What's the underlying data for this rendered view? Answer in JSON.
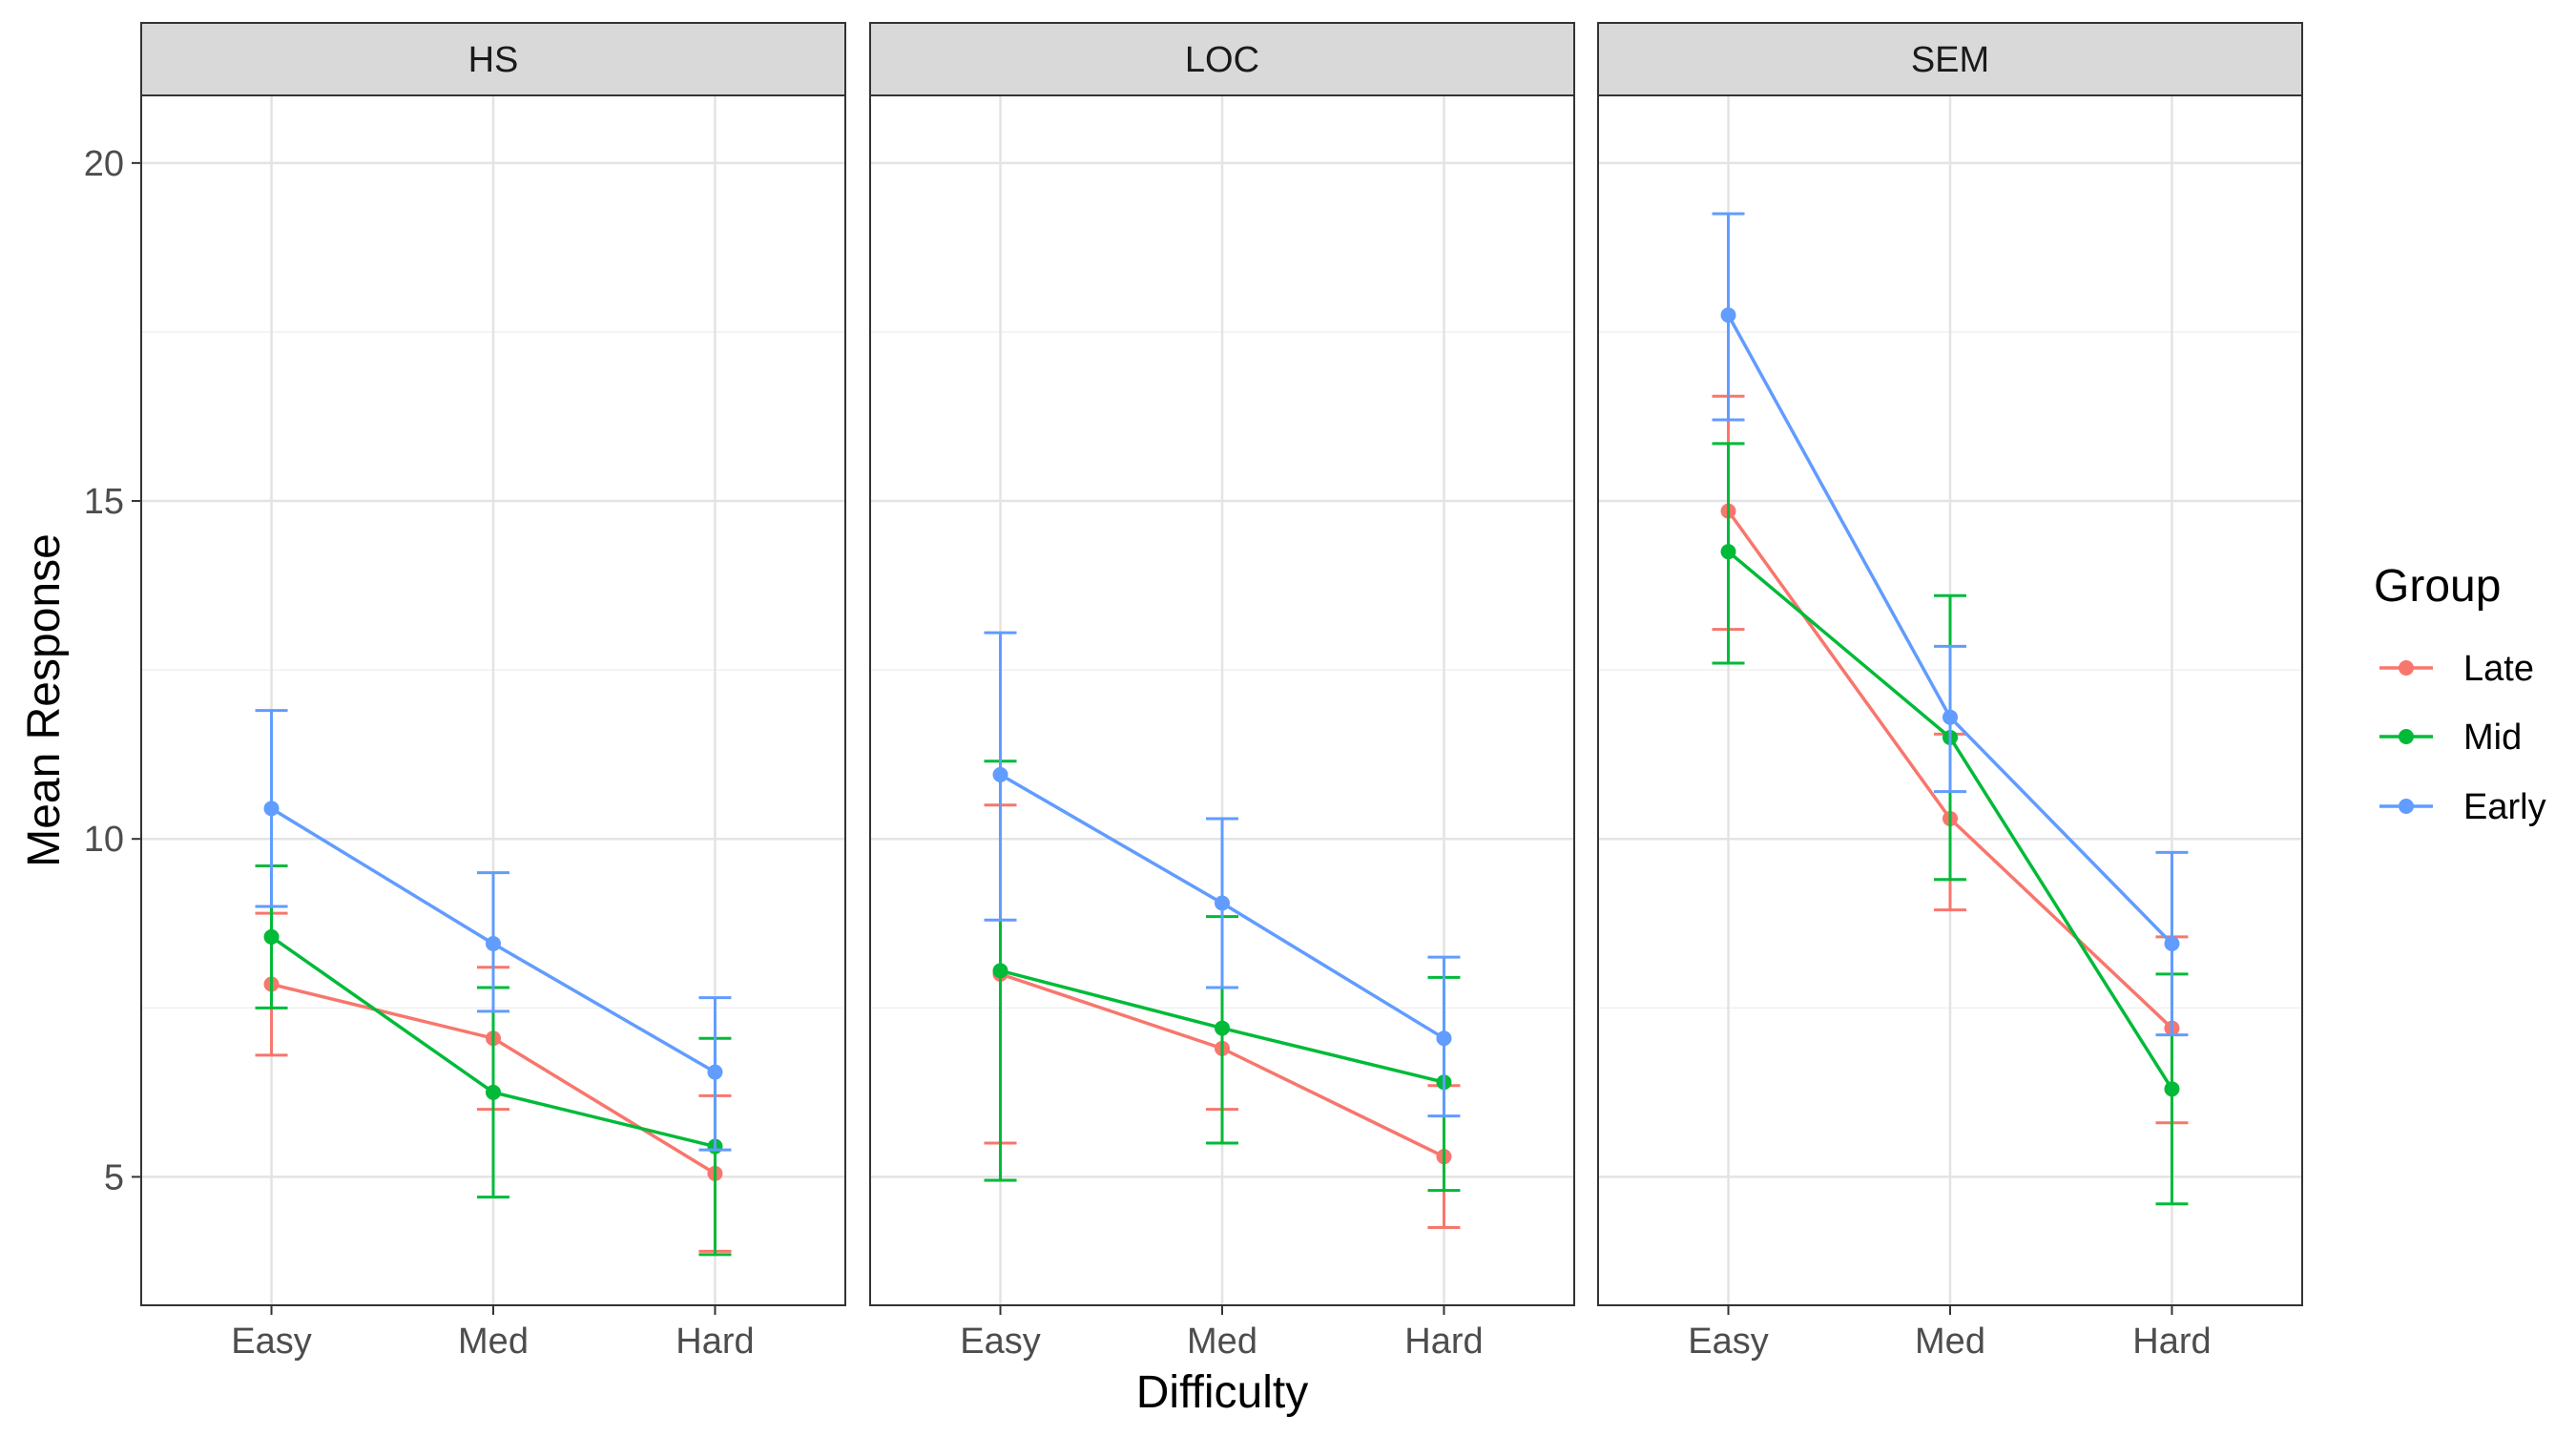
{
  "chart_data": {
    "type": "line",
    "xlabel": "Difficulty",
    "ylabel": "Mean Response",
    "categories": [
      "Easy",
      "Med",
      "Hard"
    ],
    "ylim": [
      3.1,
      21.0
    ],
    "y_ticks": [
      5,
      10,
      15,
      20
    ],
    "grid": true,
    "legend": {
      "title": "Group",
      "placement": "right",
      "entries": [
        "Late",
        "Mid",
        "Early"
      ]
    },
    "colors": {
      "Late": "#F8766D",
      "Mid": "#00BA38",
      "Early": "#619CFF"
    },
    "panels": [
      {
        "label": "HS",
        "series": [
          {
            "name": "Late",
            "values": [
              7.85,
              7.05,
              5.05
            ],
            "lower": [
              6.8,
              6.0,
              3.9
            ],
            "upper": [
              8.9,
              8.1,
              6.2
            ]
          },
          {
            "name": "Mid",
            "values": [
              8.55,
              6.25,
              5.45
            ],
            "lower": [
              7.5,
              4.7,
              3.85
            ],
            "upper": [
              9.6,
              7.8,
              7.05
            ]
          },
          {
            "name": "Early",
            "values": [
              10.45,
              8.45,
              6.55
            ],
            "lower": [
              9.0,
              7.45,
              5.4
            ],
            "upper": [
              11.9,
              9.5,
              7.65
            ]
          }
        ]
      },
      {
        "label": "LOC",
        "series": [
          {
            "name": "Late",
            "values": [
              8.0,
              6.9,
              5.3
            ],
            "lower": [
              5.5,
              6.0,
              4.25
            ],
            "upper": [
              10.5,
              7.8,
              6.35
            ]
          },
          {
            "name": "Mid",
            "values": [
              8.05,
              7.2,
              6.4
            ],
            "lower": [
              4.95,
              5.5,
              4.8
            ],
            "upper": [
              11.15,
              8.85,
              7.95
            ]
          },
          {
            "name": "Early",
            "values": [
              10.95,
              9.05,
              7.05
            ],
            "lower": [
              8.8,
              7.8,
              5.9
            ],
            "upper": [
              13.05,
              10.3,
              8.25
            ]
          }
        ]
      },
      {
        "label": "SEM",
        "series": [
          {
            "name": "Late",
            "values": [
              14.85,
              10.3,
              7.2
            ],
            "lower": [
              13.1,
              8.95,
              5.8
            ],
            "upper": [
              16.55,
              11.55,
              8.55
            ]
          },
          {
            "name": "Mid",
            "values": [
              14.25,
              11.5,
              6.3
            ],
            "lower": [
              12.6,
              9.4,
              4.6
            ],
            "upper": [
              15.85,
              13.6,
              8.0
            ]
          },
          {
            "name": "Early",
            "values": [
              17.75,
              11.8,
              8.45
            ],
            "lower": [
              16.2,
              10.7,
              7.1
            ],
            "upper": [
              19.25,
              12.85,
              9.8
            ]
          }
        ]
      }
    ]
  }
}
